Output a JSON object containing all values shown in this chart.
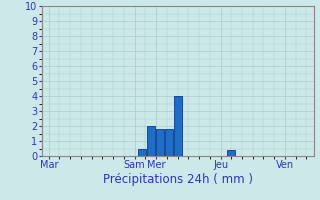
{
  "title": "",
  "xlabel": "Précipitations 24h ( mm )",
  "ylabel": "",
  "background_color": "#cce8e8",
  "grid_color": "#aacccc",
  "bar_color": "#1e6ec8",
  "bar_edge_color": "#0a3a8f",
  "ylim": [
    0,
    10
  ],
  "yticks": [
    0,
    1,
    2,
    3,
    4,
    5,
    6,
    7,
    8,
    9,
    10
  ],
  "x_tick_labels": [
    "Mar",
    "Sam",
    "Mer",
    "Jeu",
    "Ven"
  ],
  "x_tick_positions": [
    0,
    48,
    60,
    96,
    132
  ],
  "bar_positions": [
    52,
    57,
    62,
    67,
    72,
    102
  ],
  "bar_heights": [
    0.5,
    2.0,
    1.8,
    1.8,
    4.0,
    0.4
  ],
  "bar_width": 4.5,
  "xlim": [
    -4,
    148
  ],
  "xlabel_fontsize": 8.5,
  "tick_fontsize": 7
}
